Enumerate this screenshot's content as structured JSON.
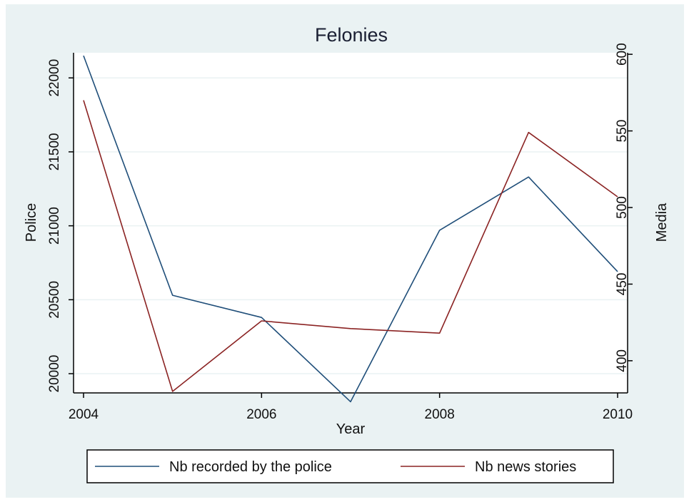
{
  "chart_data": {
    "type": "line",
    "title": "Felonies",
    "xlabel": "Year",
    "ylabel_left": "Police",
    "ylabel_right": "Media",
    "x": [
      2004,
      2005,
      2006,
      2007,
      2008,
      2009,
      2010
    ],
    "xticks": [
      2004,
      2006,
      2008,
      2010
    ],
    "xlim": [
      2004,
      2010
    ],
    "ylim_left": [
      19870,
      22170
    ],
    "yticks_left": [
      20000,
      20500,
      21000,
      21500,
      22000
    ],
    "ylim_right": [
      379,
      601
    ],
    "yticks_right": [
      400,
      450,
      500,
      550,
      600
    ],
    "grid": true,
    "legend_position": "bottom",
    "series": [
      {
        "name": "Nb recorded by the police",
        "axis": "left",
        "color": "#1f4e79",
        "values": [
          22150,
          20530,
          20380,
          19810,
          20970,
          21330,
          20690
        ]
      },
      {
        "name": "Nb news stories",
        "axis": "right",
        "color": "#8b2323",
        "values": [
          570,
          380,
          426,
          421,
          418,
          549,
          507
        ]
      }
    ]
  },
  "colors": {
    "outer_background": "#eaf2f3",
    "plot_background": "#ffffff",
    "grid": "#eaf2f3"
  }
}
